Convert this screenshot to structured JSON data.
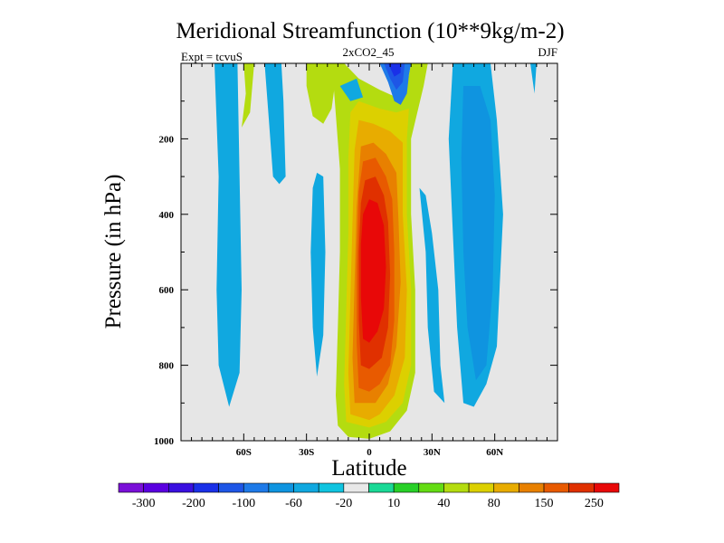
{
  "chart_data": {
    "type": "contour",
    "title": "Meridional Streamfunction (10**9kg/m-2)",
    "center_label": "2xCO2_45",
    "left_label": "Expt = tcvuS",
    "right_label": "DJF",
    "xlabel": "Latitude",
    "ylabel": "Pressure (in hPa)",
    "xlim": [
      -90,
      90
    ],
    "ylim": [
      1000,
      0
    ],
    "x_ticks": [
      {
        "value": -60,
        "label": "60S"
      },
      {
        "value": -30,
        "label": "30S"
      },
      {
        "value": 0,
        "label": "0"
      },
      {
        "value": 30,
        "label": "30N"
      },
      {
        "value": 60,
        "label": "60N"
      }
    ],
    "y_ticks": [
      {
        "value": 200,
        "label": "200"
      },
      {
        "value": 400,
        "label": "400"
      },
      {
        "value": 600,
        "label": "600"
      },
      {
        "value": 800,
        "label": "800"
      },
      {
        "value": 1000,
        "label": "1000"
      }
    ],
    "background_color": "#e6e6e6",
    "colorbar": {
      "colors": [
        "#7a10d8",
        "#5a00e0",
        "#3a10e0",
        "#1a30e8",
        "#1e56e6",
        "#1e7ae8",
        "#0f94e0",
        "#10a8e0",
        "#10c4e0",
        "#e8e8e8",
        "#1ad996",
        "#28d028",
        "#64dc14",
        "#b4dc10",
        "#dcd000",
        "#e8ac00",
        "#e88000",
        "#e85a00",
        "#e03000",
        "#e80808"
      ],
      "labels": [
        "-300",
        "-200",
        "-100",
        "-60",
        "-20",
        "10",
        "40",
        "80",
        "150",
        "250"
      ]
    },
    "regions": [
      {
        "level": 14,
        "points": [
          [
            -10,
            990
          ],
          [
            -15,
            960
          ],
          [
            -16,
            880
          ],
          [
            -15,
            700
          ],
          [
            -14,
            500
          ],
          [
            -14,
            280
          ],
          [
            -17,
            60
          ],
          [
            -20,
            0
          ],
          [
            -12,
            0
          ],
          [
            -5,
            40
          ],
          [
            5,
            70
          ],
          [
            13,
            90
          ],
          [
            18,
            60
          ],
          [
            20,
            0
          ],
          [
            28,
            0
          ],
          [
            26,
            60
          ],
          [
            20,
            200
          ],
          [
            20,
            400
          ],
          [
            22,
            600
          ],
          [
            22,
            820
          ],
          [
            18,
            920
          ],
          [
            10,
            975
          ],
          [
            0,
            995
          ]
        ]
      },
      {
        "level": 15,
        "points": [
          [
            -11,
            950
          ],
          [
            -12,
            850
          ],
          [
            -11,
            650
          ],
          [
            -10,
            450
          ],
          [
            -10,
            250
          ],
          [
            -9,
            130
          ],
          [
            -5,
            100
          ],
          [
            5,
            120
          ],
          [
            13,
            130
          ],
          [
            19,
            120
          ],
          [
            18,
            200
          ],
          [
            18,
            400
          ],
          [
            20,
            600
          ],
          [
            20,
            800
          ],
          [
            16,
            900
          ],
          [
            8,
            950
          ],
          [
            0,
            965
          ]
        ]
      },
      {
        "level": 16,
        "points": [
          [
            -9,
            930
          ],
          [
            -10,
            820
          ],
          [
            -9,
            620
          ],
          [
            -8,
            420
          ],
          [
            -7,
            230
          ],
          [
            -5,
            150
          ],
          [
            2,
            160
          ],
          [
            10,
            180
          ],
          [
            16,
            210
          ],
          [
            16,
            400
          ],
          [
            18,
            600
          ],
          [
            17,
            780
          ],
          [
            12,
            880
          ],
          [
            5,
            930
          ],
          [
            0,
            945
          ]
        ]
      },
      {
        "level": 17,
        "points": [
          [
            -7,
            900
          ],
          [
            -8,
            780
          ],
          [
            -7,
            580
          ],
          [
            -6,
            380
          ],
          [
            -4,
            220
          ],
          [
            2,
            210
          ],
          [
            8,
            240
          ],
          [
            13,
            290
          ],
          [
            14,
            420
          ],
          [
            15,
            580
          ],
          [
            13,
            750
          ],
          [
            9,
            850
          ],
          [
            3,
            900
          ]
        ]
      },
      {
        "level": 18,
        "points": [
          [
            -5,
            860
          ],
          [
            -6,
            740
          ],
          [
            -6,
            540
          ],
          [
            -5,
            340
          ],
          [
            -3,
            260
          ],
          [
            3,
            250
          ],
          [
            8,
            300
          ],
          [
            11,
            360
          ],
          [
            12,
            500
          ],
          [
            12,
            680
          ],
          [
            10,
            800
          ],
          [
            5,
            850
          ],
          [
            0,
            870
          ]
        ]
      },
      {
        "level": 19,
        "points": [
          [
            -4,
            800
          ],
          [
            -5,
            680
          ],
          [
            -5,
            500
          ],
          [
            -4,
            370
          ],
          [
            -2,
            310
          ],
          [
            3,
            300
          ],
          [
            7,
            350
          ],
          [
            9,
            420
          ],
          [
            10,
            560
          ],
          [
            9,
            700
          ],
          [
            6,
            780
          ],
          [
            0,
            810
          ]
        ]
      },
      {
        "level": 20,
        "points": [
          [
            -3,
            730
          ],
          [
            -4,
            620
          ],
          [
            -4,
            480
          ],
          [
            -3,
            400
          ],
          [
            0,
            360
          ],
          [
            4,
            370
          ],
          [
            7,
            430
          ],
          [
            8,
            540
          ],
          [
            7,
            650
          ],
          [
            4,
            710
          ],
          [
            0,
            740
          ]
        ]
      },
      {
        "level": 8,
        "points": [
          [
            -74,
            0
          ],
          [
            -72,
            300
          ],
          [
            -73,
            600
          ],
          [
            -72,
            800
          ],
          [
            -67,
            910
          ],
          [
            -62,
            820
          ],
          [
            -61,
            600
          ],
          [
            -62,
            300
          ],
          [
            -63,
            0
          ]
        ]
      },
      {
        "level": 14,
        "points": [
          [
            -60,
            0
          ],
          [
            -59,
            80
          ],
          [
            -61,
            170
          ],
          [
            -57,
            130
          ],
          [
            -55,
            0
          ]
        ]
      },
      {
        "level": 8,
        "points": [
          [
            -50,
            0
          ],
          [
            -48,
            150
          ],
          [
            -46,
            300
          ],
          [
            -43,
            320
          ],
          [
            -40,
            300
          ],
          [
            -41,
            100
          ],
          [
            -42,
            0
          ]
        ]
      },
      {
        "level": 8,
        "points": [
          [
            -27,
            330
          ],
          [
            -28,
            500
          ],
          [
            -27,
            700
          ],
          [
            -25,
            830
          ],
          [
            -22,
            720
          ],
          [
            -21,
            500
          ],
          [
            -22,
            300
          ],
          [
            -25,
            290
          ]
        ]
      },
      {
        "level": 14,
        "points": [
          [
            -30,
            0
          ],
          [
            -30,
            60
          ],
          [
            -27,
            140
          ],
          [
            -22,
            160
          ],
          [
            -18,
            120
          ],
          [
            -16,
            40
          ],
          [
            -17,
            0
          ]
        ]
      },
      {
        "level": 8,
        "points": [
          [
            -14,
            60
          ],
          [
            -9,
            100
          ],
          [
            -3,
            90
          ],
          [
            -6,
            40
          ]
        ]
      },
      {
        "level": 6,
        "points": [
          [
            5,
            0
          ],
          [
            9,
            50
          ],
          [
            12,
            100
          ],
          [
            15,
            110
          ],
          [
            18,
            80
          ],
          [
            19,
            30
          ],
          [
            20,
            0
          ]
        ]
      },
      {
        "level": 5,
        "points": [
          [
            7,
            0
          ],
          [
            10,
            40
          ],
          [
            13,
            70
          ],
          [
            16,
            50
          ],
          [
            17,
            0
          ]
        ]
      },
      {
        "level": 4,
        "points": [
          [
            9,
            0
          ],
          [
            12,
            35
          ],
          [
            15,
            25
          ],
          [
            15,
            0
          ]
        ]
      },
      {
        "level": 8,
        "points": [
          [
            24,
            330
          ],
          [
            27,
            500
          ],
          [
            28,
            700
          ],
          [
            31,
            870
          ],
          [
            36,
            900
          ],
          [
            34,
            800
          ],
          [
            33,
            600
          ],
          [
            30,
            450
          ],
          [
            27,
            350
          ]
        ]
      },
      {
        "level": 8,
        "points": [
          [
            40,
            0
          ],
          [
            38,
            200
          ],
          [
            40,
            450
          ],
          [
            42,
            700
          ],
          [
            45,
            900
          ],
          [
            50,
            910
          ],
          [
            56,
            850
          ],
          [
            61,
            750
          ],
          [
            64,
            400
          ],
          [
            61,
            150
          ],
          [
            58,
            0
          ]
        ]
      },
      {
        "level": 7,
        "points": [
          [
            45,
            60
          ],
          [
            44,
            250
          ],
          [
            45,
            500
          ],
          [
            47,
            700
          ],
          [
            51,
            840
          ],
          [
            56,
            800
          ],
          [
            59,
            600
          ],
          [
            60,
            350
          ],
          [
            58,
            150
          ],
          [
            53,
            60
          ]
        ]
      },
      {
        "level": 8,
        "points": [
          [
            77,
            0
          ],
          [
            79,
            80
          ],
          [
            80,
            0
          ]
        ]
      }
    ]
  }
}
